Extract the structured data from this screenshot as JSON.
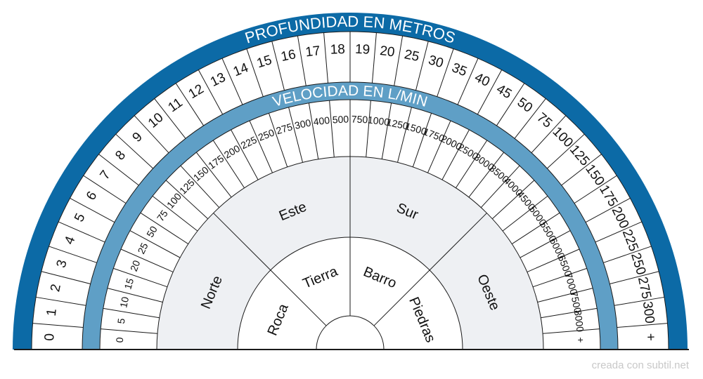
{
  "titles": {
    "outer": "PROFUNDIDAD EN METROS",
    "inner": "VELOCIDAD EN L/MIN"
  },
  "depth_labels": [
    "0",
    "1",
    "2",
    "3",
    "4",
    "5",
    "6",
    "7",
    "8",
    "9",
    "10",
    "11",
    "12",
    "13",
    "14",
    "15",
    "16",
    "17",
    "18",
    "19",
    "20",
    "25",
    "30",
    "35",
    "40",
    "45",
    "50",
    "75",
    "100",
    "125",
    "150",
    "175",
    "200",
    "225",
    "250",
    "275",
    "300",
    "+"
  ],
  "flow_labels": [
    "0",
    "5",
    "10",
    "15",
    "20",
    "25",
    "50",
    "75",
    "100",
    "125",
    "150",
    "175",
    "200",
    "225",
    "250",
    "275",
    "300",
    "400",
    "500",
    "750",
    "1000",
    "1250",
    "1500",
    "1750",
    "2000",
    "2500",
    "3000",
    "3500",
    "4000",
    "4500",
    "5000",
    "5500",
    "6000",
    "6500",
    "7000",
    "7500",
    "8000",
    "+"
  ],
  "directions": [
    "Norte",
    "Este",
    "Sur",
    "Oeste"
  ],
  "terrains": [
    "Roca",
    "Tierra",
    "Barro",
    "Piedras"
  ],
  "watermark": "creada con subtil.net",
  "colors": {
    "outer_band": "#0c6aa6",
    "inner_band": "#5f9fc6",
    "sector_fill": "#eef0f3",
    "line": "#1a1a1a",
    "band_text": "#ffffff"
  }
}
